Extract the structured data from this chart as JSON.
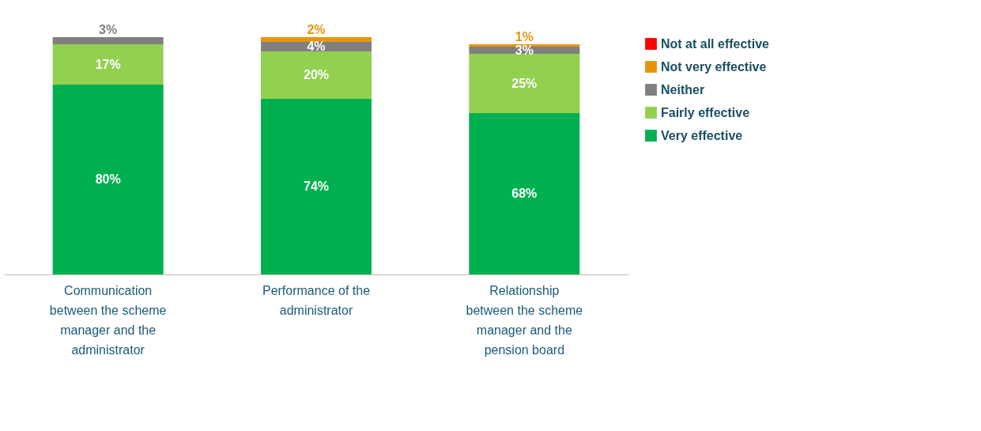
{
  "chart_data": {
    "type": "bar",
    "stacked": true,
    "categories": [
      "Communication between the scheme manager and the administrator",
      "Performance of the administrator",
      "Relationship between the scheme manager and the pension board"
    ],
    "series": [
      {
        "name": "Very effective",
        "color": "#00b050",
        "values": [
          80,
          74,
          68
        ],
        "value_labels": [
          "80%",
          "74%",
          "68%"
        ]
      },
      {
        "name": "Fairly effective",
        "color": "#92d050",
        "values": [
          17,
          20,
          25
        ],
        "value_labels": [
          "17%",
          "20%",
          "25%"
        ]
      },
      {
        "name": "Neither",
        "color": "#808080",
        "values": [
          3,
          4,
          3
        ],
        "value_labels": [
          "3%",
          "4%",
          "3%"
        ]
      },
      {
        "name": "Not very effective",
        "color": "#e8940a",
        "values": [
          null,
          2,
          1
        ],
        "value_labels": [
          null,
          "2%",
          "1%"
        ]
      },
      {
        "name": "Not at all effective",
        "color": "#ff0000",
        "values": [
          null,
          null,
          null
        ],
        "value_labels": [
          null,
          null,
          null
        ]
      }
    ],
    "legend": "right",
    "grid": false,
    "tick_labels": "x"
  }
}
